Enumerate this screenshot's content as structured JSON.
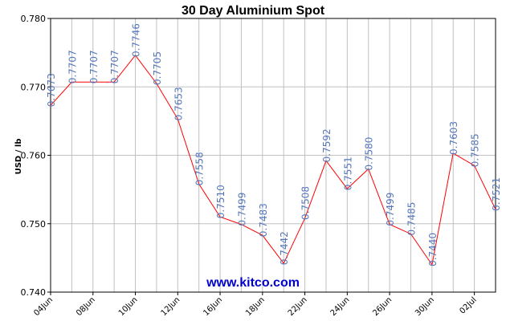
{
  "chart_data": {
    "type": "line",
    "title": "30 Day Aluminium Spot",
    "xlabel": "",
    "ylabel": "USD / lb",
    "ylim": [
      0.74,
      0.78
    ],
    "yticks": [
      "0.740",
      "0.750",
      "0.760",
      "0.770",
      "0.780"
    ],
    "xticks": [
      "04Jun",
      "08Jun",
      "10Jun",
      "12Jun",
      "16Jun",
      "18Jun",
      "22Jun",
      "24Jun",
      "26Jun",
      "30Jun",
      "02Jul"
    ],
    "grid": true,
    "colors": {
      "line": "#ff0000",
      "labels": "#5577bb",
      "grid": "#c0c0c0",
      "watermark": "#0000cc"
    },
    "series": [
      {
        "values": [
          0.7673,
          0.7707,
          0.7707,
          0.7707,
          0.7746,
          0.7705,
          0.7653,
          0.7558,
          0.751,
          0.7499,
          0.7483,
          0.7442,
          0.7508,
          0.7592,
          0.7551,
          0.758,
          0.7499,
          0.7485,
          0.744,
          0.7603,
          0.7585,
          0.7521
        ],
        "labels": [
          "0.7673",
          "0.7707",
          "0.7707",
          "0.7707",
          "0.7746",
          "0.7705",
          "0.7653",
          "0.7558",
          "0.7510",
          "0.7499",
          "0.7483",
          "0.7442",
          "0.7508",
          "0.7592",
          "0.7551",
          "0.7580",
          "0.7499",
          "0.7485",
          "0.7440",
          "0.7603",
          "0.7585",
          "0.7521"
        ]
      }
    ]
  },
  "watermark": "www.kitco.com"
}
